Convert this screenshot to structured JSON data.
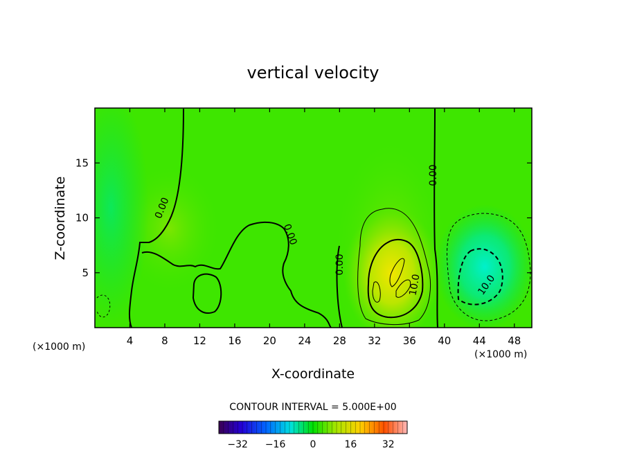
{
  "chart_data": {
    "type": "heatmap",
    "title": "vertical velocity",
    "xlabel": "X-coordinate",
    "ylabel": "Z-coordinate",
    "x_unit": "(×1000 m)",
    "x_unit_right": "(×1000 m)",
    "xlim": [
      0,
      50
    ],
    "ylim": [
      0,
      20
    ],
    "x_ticks": [
      4,
      8,
      12,
      16,
      20,
      24,
      28,
      32,
      36,
      40,
      44,
      48
    ],
    "y_ticks": [
      5,
      10,
      15
    ],
    "contour_interval_text": "CONTOUR INTERVAL = 5.000E+00",
    "contour_labels": [
      {
        "text": "0.00",
        "x": 8,
        "z": 10.5
      },
      {
        "text": "0.00",
        "x": 22.7,
        "z": 8.6
      },
      {
        "text": "0.00",
        "x": 28.5,
        "z": 5.7
      },
      {
        "text": "0.00",
        "x": 38.9,
        "z": 14.0
      },
      {
        "text": "10.0",
        "x": 36.5,
        "z": 4.0
      },
      {
        "text": "10.0",
        "x": 45.0,
        "z": 3.8
      }
    ],
    "features": [
      {
        "name": "updraft core",
        "x": 33.6,
        "z": 5.0,
        "value": 15
      },
      {
        "name": "downdraft core",
        "x": 44.0,
        "z": 5.2,
        "value": -12
      }
    ],
    "colorbar": {
      "min": -40,
      "max": 40,
      "ticks": [
        -32,
        -16,
        0,
        16,
        32
      ],
      "tick_labels": [
        "−32",
        "−16",
        "0",
        "16",
        "32"
      ]
    }
  }
}
